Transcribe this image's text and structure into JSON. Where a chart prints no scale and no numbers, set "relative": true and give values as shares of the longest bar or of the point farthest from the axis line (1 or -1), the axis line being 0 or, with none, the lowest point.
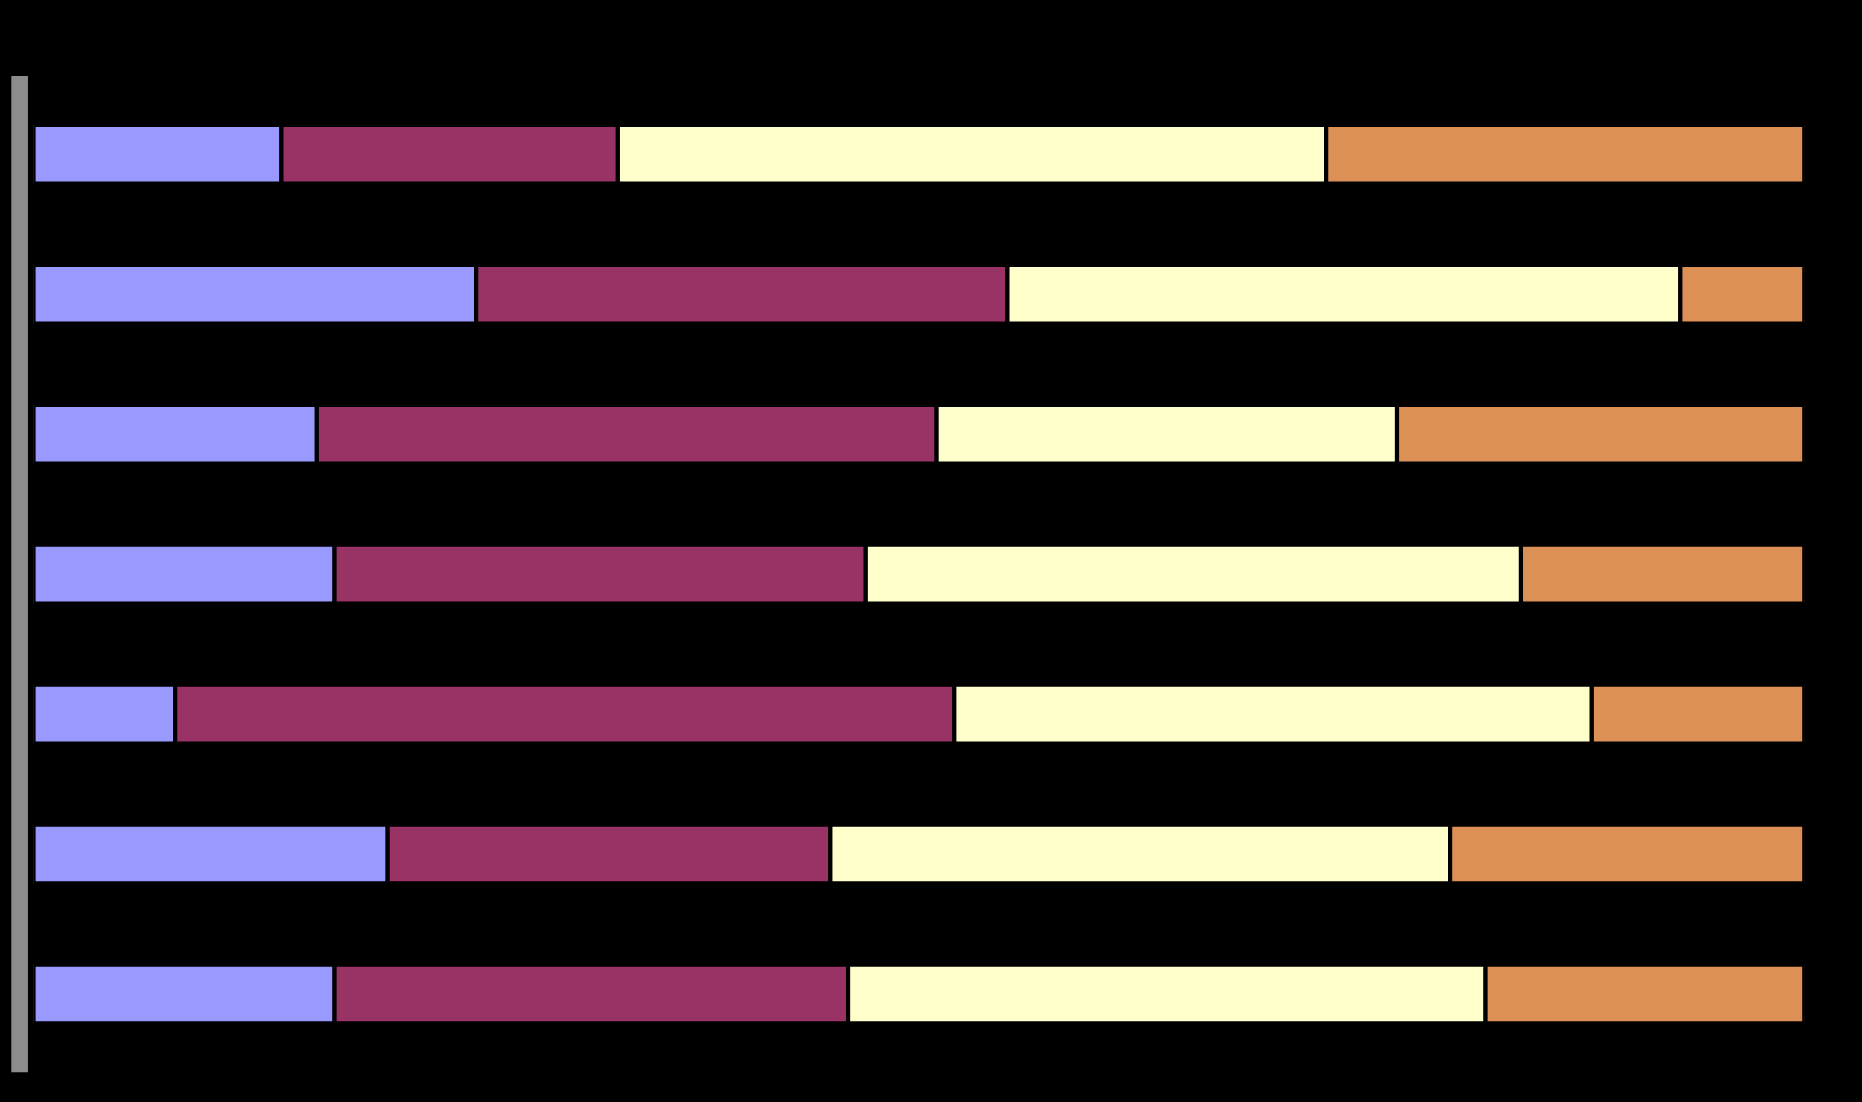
{
  "chart_data": {
    "type": "bar",
    "orientation": "horizontal",
    "stacked": true,
    "relative": true,
    "categories": [
      null,
      null,
      null,
      null,
      null,
      null,
      null
    ],
    "series": [
      {
        "color": "#9999ff",
        "values": [
          0.14,
          0.25,
          0.16,
          0.17,
          0.08,
          0.2,
          0.17
        ]
      },
      {
        "color": "#993366",
        "values": [
          0.19,
          0.3,
          0.35,
          0.3,
          0.44,
          0.25,
          0.29
        ]
      },
      {
        "color": "#ffffcc",
        "values": [
          0.4,
          0.38,
          0.26,
          0.37,
          0.36,
          0.35,
          0.36
        ]
      },
      {
        "color": "#dd9055",
        "values": [
          0.27,
          0.07,
          0.23,
          0.16,
          0.12,
          0.2,
          0.18
        ]
      }
    ]
  }
}
